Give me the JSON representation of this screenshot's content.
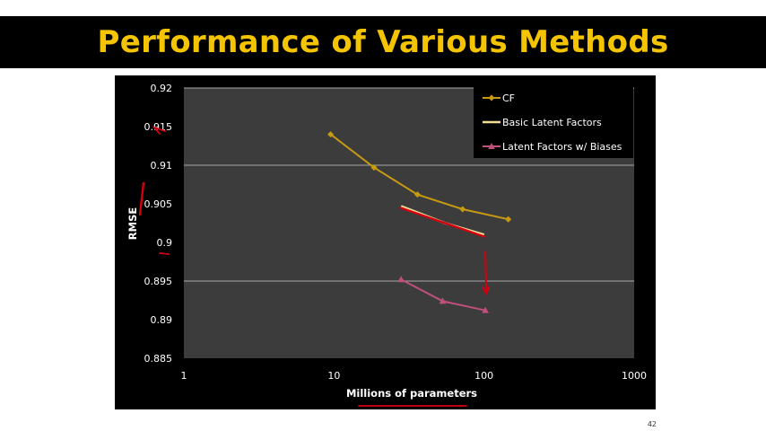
{
  "slide": {
    "title": "Performance of Various Methods",
    "page_number": "42"
  },
  "colors": {
    "title": "#f5c400",
    "plot_bg": "#3c3c3c",
    "gridline": "#a8a8a8",
    "cf": "#c79a12",
    "basic": "#f3dc98",
    "biases": "#c0507c",
    "annotation": "#d40010"
  },
  "chart_data": {
    "type": "line",
    "xlabel": "Millions of parameters",
    "ylabel": "RMSE",
    "xscale": "log",
    "xlim": [
      1,
      1000
    ],
    "ylim": [
      0.885,
      0.92
    ],
    "xticks": [
      "1",
      "10",
      "100",
      "1000"
    ],
    "yticks": [
      "0.885",
      "0.89",
      "0.895",
      "0.9",
      "0.905",
      "0.91",
      "0.915",
      "0.92"
    ],
    "grid": "horizontal-major",
    "legend_position": "top-right",
    "series": [
      {
        "name": "CF",
        "marker": "diamond",
        "points": [
          [
            9.5,
            0.914
          ],
          [
            18.5,
            0.9097
          ],
          [
            36,
            0.9062
          ],
          [
            72,
            0.9043
          ],
          [
            145,
            0.903
          ]
        ]
      },
      {
        "name": "Basic Latent Factors",
        "marker": "none",
        "points": [
          [
            28,
            0.9047
          ],
          [
            55,
            0.9025
          ],
          [
            100,
            0.901
          ]
        ]
      },
      {
        "name": "Latent Factors w/ Biases",
        "marker": "triangle",
        "points": [
          [
            28,
            0.8952
          ],
          [
            53,
            0.8924
          ],
          [
            102,
            0.8912
          ]
        ]
      }
    ]
  }
}
